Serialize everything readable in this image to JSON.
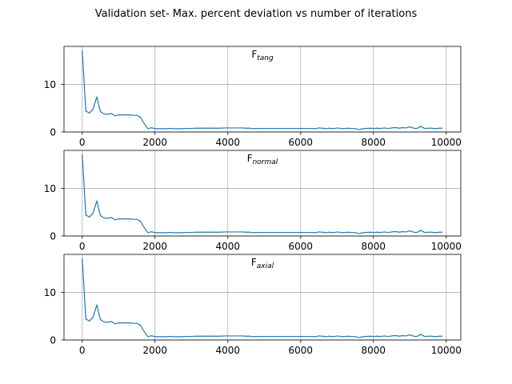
{
  "figure": {
    "title": "Validation set- Max. percent deviation vs number of iterations"
  },
  "colors": {
    "series": "#1f77b4",
    "grid": "#b0b0b0",
    "axes": "#000000",
    "background": "#ffffff"
  },
  "chart_data": [
    {
      "type": "line",
      "title": "F",
      "title_subscript": "tang",
      "xlabel": "",
      "ylabel": "",
      "xlim": [
        -500,
        10400
      ],
      "ylim": [
        0,
        18
      ],
      "xticks": [
        0,
        2000,
        4000,
        6000,
        8000,
        10000
      ],
      "yticks": [
        0,
        10
      ],
      "xtick_labels": [
        "0",
        "2000",
        "4000",
        "6000",
        "8000",
        "10000"
      ],
      "ytick_labels": [
        "0",
        "10"
      ],
      "grid": true,
      "x": [
        0,
        100,
        200,
        300,
        400,
        500,
        600,
        700,
        800,
        900,
        1000,
        1100,
        1200,
        1300,
        1400,
        1500,
        1600,
        1700,
        1800,
        1900,
        2000,
        2100,
        2200,
        2300,
        2400,
        2500,
        2600,
        2700,
        2800,
        2900,
        3000,
        3100,
        3200,
        3300,
        3400,
        3500,
        3600,
        3700,
        3800,
        3900,
        4000,
        4100,
        4200,
        4300,
        4400,
        4500,
        4600,
        4700,
        4800,
        4900,
        5000,
        5100,
        5200,
        5300,
        5400,
        5500,
        5600,
        5700,
        5800,
        5900,
        6000,
        6100,
        6200,
        6300,
        6400,
        6500,
        6600,
        6700,
        6800,
        6900,
        7000,
        7100,
        7200,
        7300,
        7400,
        7500,
        7600,
        7700,
        7800,
        7900,
        8000,
        8100,
        8200,
        8300,
        8400,
        8500,
        8600,
        8700,
        8800,
        8900,
        9000,
        9100,
        9200,
        9300,
        9400,
        9500,
        9600,
        9700,
        9800,
        9900
      ],
      "series": [
        {
          "values": [
            17.2,
            4.4,
            4.0,
            4.8,
            7.4,
            4.3,
            3.8,
            3.7,
            3.9,
            3.4,
            3.6,
            3.6,
            3.6,
            3.6,
            3.5,
            3.5,
            3.1,
            1.8,
            0.7,
            0.9,
            0.7,
            0.7,
            0.7,
            0.7,
            0.75,
            0.7,
            0.7,
            0.7,
            0.75,
            0.75,
            0.75,
            0.8,
            0.8,
            0.8,
            0.8,
            0.8,
            0.8,
            0.8,
            0.8,
            0.85,
            0.85,
            0.85,
            0.85,
            0.85,
            0.85,
            0.8,
            0.8,
            0.7,
            0.75,
            0.75,
            0.75,
            0.75,
            0.75,
            0.75,
            0.75,
            0.75,
            0.75,
            0.75,
            0.75,
            0.75,
            0.75,
            0.75,
            0.75,
            0.75,
            0.7,
            0.85,
            0.8,
            0.7,
            0.8,
            0.7,
            0.85,
            0.75,
            0.7,
            0.8,
            0.75,
            0.7,
            0.5,
            0.7,
            0.75,
            0.8,
            0.75,
            0.8,
            0.75,
            0.85,
            0.75,
            0.85,
            0.95,
            0.8,
            0.9,
            0.85,
            1.1,
            0.8,
            0.75,
            1.2,
            0.75,
            0.8,
            0.8,
            0.7,
            0.8,
            0.8
          ]
        }
      ]
    },
    {
      "type": "line",
      "title": "F",
      "title_subscript": "normal",
      "xlabel": "",
      "ylabel": "",
      "xlim": [
        -500,
        10400
      ],
      "ylim": [
        0,
        18
      ],
      "xticks": [
        0,
        2000,
        4000,
        6000,
        8000,
        10000
      ],
      "yticks": [
        0,
        10
      ],
      "xtick_labels": [
        "0",
        "2000",
        "4000",
        "6000",
        "8000",
        "10000"
      ],
      "ytick_labels": [
        "0",
        "10"
      ],
      "grid": true,
      "x": [
        0,
        100,
        200,
        300,
        400,
        500,
        600,
        700,
        800,
        900,
        1000,
        1100,
        1200,
        1300,
        1400,
        1500,
        1600,
        1700,
        1800,
        1900,
        2000,
        2100,
        2200,
        2300,
        2400,
        2500,
        2600,
        2700,
        2800,
        2900,
        3000,
        3100,
        3200,
        3300,
        3400,
        3500,
        3600,
        3700,
        3800,
        3900,
        4000,
        4100,
        4200,
        4300,
        4400,
        4500,
        4600,
        4700,
        4800,
        4900,
        5000,
        5100,
        5200,
        5300,
        5400,
        5500,
        5600,
        5700,
        5800,
        5900,
        6000,
        6100,
        6200,
        6300,
        6400,
        6500,
        6600,
        6700,
        6800,
        6900,
        7000,
        7100,
        7200,
        7300,
        7400,
        7500,
        7600,
        7700,
        7800,
        7900,
        8000,
        8100,
        8200,
        8300,
        8400,
        8500,
        8600,
        8700,
        8800,
        8900,
        9000,
        9100,
        9200,
        9300,
        9400,
        9500,
        9600,
        9700,
        9800,
        9900
      ],
      "series": [
        {
          "values": [
            17.2,
            4.4,
            4.0,
            4.8,
            7.4,
            4.3,
            3.8,
            3.7,
            3.9,
            3.4,
            3.6,
            3.6,
            3.6,
            3.6,
            3.5,
            3.5,
            3.1,
            1.8,
            0.7,
            0.9,
            0.7,
            0.7,
            0.7,
            0.7,
            0.75,
            0.7,
            0.7,
            0.7,
            0.75,
            0.75,
            0.75,
            0.8,
            0.8,
            0.8,
            0.8,
            0.8,
            0.8,
            0.8,
            0.8,
            0.85,
            0.85,
            0.85,
            0.85,
            0.85,
            0.85,
            0.8,
            0.8,
            0.7,
            0.75,
            0.75,
            0.75,
            0.75,
            0.75,
            0.75,
            0.75,
            0.75,
            0.75,
            0.75,
            0.75,
            0.75,
            0.75,
            0.75,
            0.75,
            0.75,
            0.7,
            0.85,
            0.8,
            0.7,
            0.8,
            0.7,
            0.85,
            0.75,
            0.7,
            0.8,
            0.75,
            0.7,
            0.5,
            0.7,
            0.75,
            0.8,
            0.75,
            0.8,
            0.75,
            0.85,
            0.75,
            0.85,
            0.95,
            0.8,
            0.9,
            0.85,
            1.1,
            0.8,
            0.75,
            1.2,
            0.75,
            0.8,
            0.8,
            0.7,
            0.8,
            0.8
          ]
        }
      ]
    },
    {
      "type": "line",
      "title": "F",
      "title_subscript": "axial",
      "xlabel": "",
      "ylabel": "",
      "xlim": [
        -500,
        10400
      ],
      "ylim": [
        0,
        18
      ],
      "xticks": [
        0,
        2000,
        4000,
        6000,
        8000,
        10000
      ],
      "yticks": [
        0,
        10
      ],
      "xtick_labels": [
        "0",
        "2000",
        "4000",
        "6000",
        "8000",
        "10000"
      ],
      "ytick_labels": [
        "0",
        "10"
      ],
      "grid": true,
      "x": [
        0,
        100,
        200,
        300,
        400,
        500,
        600,
        700,
        800,
        900,
        1000,
        1100,
        1200,
        1300,
        1400,
        1500,
        1600,
        1700,
        1800,
        1900,
        2000,
        2100,
        2200,
        2300,
        2400,
        2500,
        2600,
        2700,
        2800,
        2900,
        3000,
        3100,
        3200,
        3300,
        3400,
        3500,
        3600,
        3700,
        3800,
        3900,
        4000,
        4100,
        4200,
        4300,
        4400,
        4500,
        4600,
        4700,
        4800,
        4900,
        5000,
        5100,
        5200,
        5300,
        5400,
        5500,
        5600,
        5700,
        5800,
        5900,
        6000,
        6100,
        6200,
        6300,
        6400,
        6500,
        6600,
        6700,
        6800,
        6900,
        7000,
        7100,
        7200,
        7300,
        7400,
        7500,
        7600,
        7700,
        7800,
        7900,
        8000,
        8100,
        8200,
        8300,
        8400,
        8500,
        8600,
        8700,
        8800,
        8900,
        9000,
        9100,
        9200,
        9300,
        9400,
        9500,
        9600,
        9700,
        9800,
        9900
      ],
      "series": [
        {
          "values": [
            17.2,
            4.4,
            4.0,
            4.8,
            7.4,
            4.3,
            3.8,
            3.7,
            3.9,
            3.4,
            3.6,
            3.6,
            3.6,
            3.6,
            3.5,
            3.5,
            3.1,
            1.8,
            0.7,
            0.9,
            0.7,
            0.7,
            0.7,
            0.7,
            0.75,
            0.7,
            0.7,
            0.7,
            0.75,
            0.75,
            0.75,
            0.8,
            0.8,
            0.8,
            0.8,
            0.8,
            0.8,
            0.8,
            0.8,
            0.85,
            0.85,
            0.85,
            0.85,
            0.85,
            0.85,
            0.8,
            0.8,
            0.7,
            0.75,
            0.75,
            0.75,
            0.75,
            0.75,
            0.75,
            0.75,
            0.75,
            0.75,
            0.75,
            0.75,
            0.75,
            0.75,
            0.75,
            0.75,
            0.75,
            0.7,
            0.85,
            0.8,
            0.7,
            0.8,
            0.7,
            0.85,
            0.75,
            0.7,
            0.8,
            0.75,
            0.7,
            0.5,
            0.7,
            0.75,
            0.8,
            0.75,
            0.8,
            0.75,
            0.85,
            0.75,
            0.85,
            0.95,
            0.8,
            0.9,
            0.85,
            1.1,
            0.8,
            0.75,
            1.2,
            0.75,
            0.8,
            0.8,
            0.7,
            0.8,
            0.8
          ]
        }
      ]
    }
  ]
}
